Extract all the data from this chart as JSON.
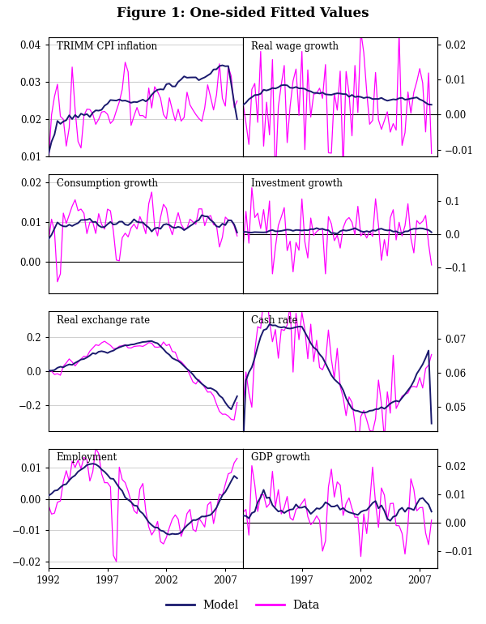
{
  "title": "Figure 1: One-sided Fitted Values",
  "model_color": "#1a1a6e",
  "data_color": "#ff00ff",
  "model_lw": 1.4,
  "data_lw": 0.9,
  "legend_model": "Model",
  "legend_data": "Data",
  "bg_color": "#ffffff",
  "grid_color": "#c8c8c8",
  "subplots": [
    {
      "title": "TRIMM CPI inflation",
      "left_ylim": [
        0.01,
        0.042
      ],
      "right_ylim": null,
      "left_yticks": [
        0.01,
        0.02,
        0.03,
        0.04
      ],
      "right_yticks": null,
      "show_left": true,
      "show_right": false,
      "row": 0,
      "col": 0,
      "xticks": [
        1992,
        1997,
        2002,
        2007
      ],
      "show_xticks": false
    },
    {
      "title": "Real wage growth",
      "left_ylim": [
        -0.012,
        0.022
      ],
      "right_ylim": [
        -0.012,
        0.022
      ],
      "left_yticks": [],
      "right_yticks": [
        -0.01,
        0.0,
        0.01,
        0.02
      ],
      "show_left": false,
      "show_right": true,
      "row": 0,
      "col": 1,
      "xticks": [
        1997,
        2002,
        2007
      ],
      "show_xticks": false
    },
    {
      "title": "Consumption growth",
      "left_ylim": [
        -0.008,
        0.022
      ],
      "right_ylim": null,
      "left_yticks": [
        0.0,
        0.01,
        0.02
      ],
      "right_yticks": null,
      "show_left": true,
      "show_right": false,
      "row": 1,
      "col": 0,
      "xticks": [
        1992,
        1997,
        2002,
        2007
      ],
      "show_xticks": false
    },
    {
      "title": "Investment growth",
      "left_ylim": [
        -0.18,
        0.18
      ],
      "right_ylim": [
        -0.18,
        0.18
      ],
      "left_yticks": [],
      "right_yticks": [
        -0.1,
        0.0,
        0.1
      ],
      "show_left": false,
      "show_right": true,
      "row": 1,
      "col": 1,
      "xticks": [
        1997,
        2002,
        2007
      ],
      "show_xticks": false
    },
    {
      "title": "Real exchange rate",
      "left_ylim": [
        -0.35,
        0.35
      ],
      "right_ylim": null,
      "left_yticks": [
        -0.2,
        0.0,
        0.2
      ],
      "right_yticks": null,
      "show_left": true,
      "show_right": false,
      "row": 2,
      "col": 0,
      "xticks": [
        1992,
        1997,
        2002,
        2007
      ],
      "show_xticks": false
    },
    {
      "title": "Cash rate",
      "left_ylim": [
        0.043,
        0.078
      ],
      "right_ylim": [
        0.043,
        0.078
      ],
      "left_yticks": [],
      "right_yticks": [
        0.05,
        0.06,
        0.07
      ],
      "show_left": false,
      "show_right": true,
      "row": 2,
      "col": 1,
      "xticks": [
        1997,
        2002,
        2007
      ],
      "show_xticks": false
    },
    {
      "title": "Employment",
      "left_ylim": [
        -0.022,
        0.016
      ],
      "right_ylim": null,
      "left_yticks": [
        -0.02,
        -0.01,
        0.0,
        0.01
      ],
      "right_yticks": null,
      "show_left": true,
      "show_right": false,
      "row": 3,
      "col": 0,
      "xticks": [
        1992,
        1997,
        2002,
        2007
      ],
      "show_xticks": true
    },
    {
      "title": "GDP growth",
      "left_ylim": [
        -0.016,
        0.026
      ],
      "right_ylim": [
        -0.016,
        0.026
      ],
      "left_yticks": [],
      "right_yticks": [
        -0.01,
        0.0,
        0.01,
        0.02
      ],
      "show_left": false,
      "show_right": true,
      "row": 3,
      "col": 1,
      "xticks": [
        1997,
        2002,
        2007
      ],
      "show_xticks": true
    }
  ]
}
